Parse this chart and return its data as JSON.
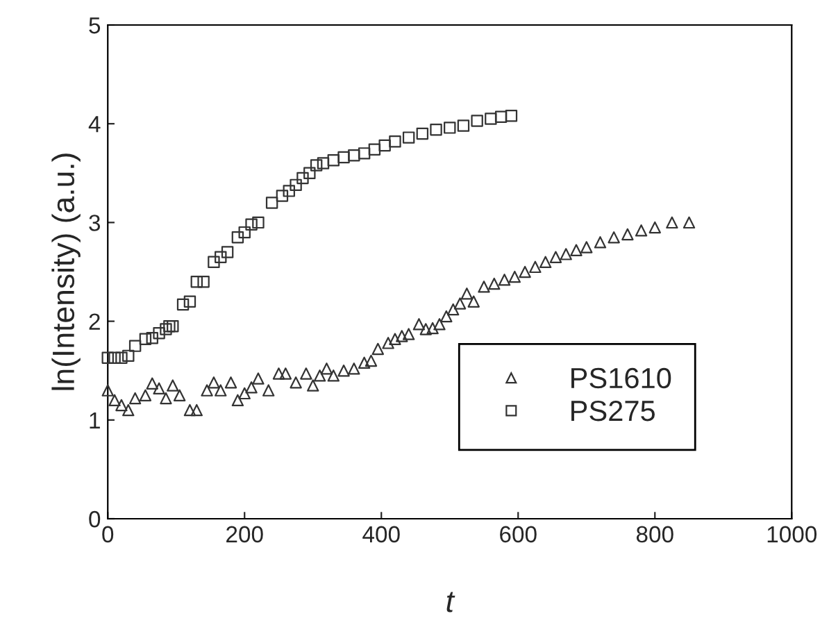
{
  "chart_data": {
    "type": "scatter",
    "xlabel": "t",
    "ylabel": "ln(Intensity) (a.u.)",
    "xlim": [
      0,
      1000
    ],
    "ylim": [
      0,
      5
    ],
    "xticks": [
      0,
      200,
      400,
      600,
      800,
      1000
    ],
    "yticks": [
      0,
      1,
      2,
      3,
      4,
      5
    ],
    "grid": false,
    "legend": "lower right",
    "series": [
      {
        "name": "PS1610",
        "color": "#333333",
        "marker": "triangle",
        "x": [
          0,
          10,
          20,
          30,
          40,
          55,
          65,
          75,
          85,
          95,
          105,
          120,
          130,
          145,
          155,
          165,
          180,
          190,
          200,
          210,
          220,
          235,
          250,
          260,
          275,
          290,
          300,
          310,
          320,
          330,
          345,
          360,
          375,
          385,
          395,
          410,
          420,
          430,
          440,
          455,
          465,
          475,
          485,
          495,
          505,
          515,
          525,
          535,
          550,
          565,
          580,
          595,
          610,
          625,
          640,
          655,
          670,
          685,
          700,
          720,
          740,
          760,
          780,
          800,
          825,
          850
        ],
        "values": [
          1.3,
          1.2,
          1.15,
          1.1,
          1.22,
          1.25,
          1.37,
          1.32,
          1.22,
          1.35,
          1.25,
          1.1,
          1.1,
          1.3,
          1.38,
          1.3,
          1.38,
          1.2,
          1.27,
          1.33,
          1.42,
          1.3,
          1.47,
          1.47,
          1.38,
          1.47,
          1.35,
          1.45,
          1.52,
          1.45,
          1.5,
          1.52,
          1.58,
          1.6,
          1.72,
          1.78,
          1.82,
          1.85,
          1.87,
          1.97,
          1.92,
          1.93,
          1.97,
          2.05,
          2.12,
          2.18,
          2.28,
          2.2,
          2.35,
          2.38,
          2.42,
          2.45,
          2.5,
          2.55,
          2.6,
          2.65,
          2.68,
          2.72,
          2.75,
          2.8,
          2.85,
          2.88,
          2.92,
          2.95,
          3.0,
          3.0
        ]
      },
      {
        "name": "PS275",
        "color": "#333333",
        "marker": "square",
        "x": [
          0,
          10,
          20,
          30,
          40,
          55,
          65,
          75,
          85,
          90,
          95,
          110,
          120,
          130,
          140,
          155,
          165,
          175,
          190,
          200,
          210,
          220,
          240,
          255,
          265,
          275,
          285,
          295,
          305,
          315,
          330,
          345,
          360,
          375,
          390,
          405,
          420,
          440,
          460,
          480,
          500,
          520,
          540,
          560,
          575,
          590
        ],
        "values": [
          1.63,
          1.63,
          1.63,
          1.65,
          1.75,
          1.82,
          1.83,
          1.88,
          1.92,
          1.95,
          1.95,
          2.17,
          2.2,
          2.4,
          2.4,
          2.6,
          2.65,
          2.7,
          2.85,
          2.9,
          2.98,
          3.0,
          3.2,
          3.27,
          3.32,
          3.38,
          3.45,
          3.5,
          3.58,
          3.6,
          3.63,
          3.66,
          3.68,
          3.7,
          3.74,
          3.78,
          3.82,
          3.86,
          3.9,
          3.94,
          3.96,
          3.98,
          4.03,
          4.05,
          4.07,
          4.08
        ]
      }
    ]
  }
}
